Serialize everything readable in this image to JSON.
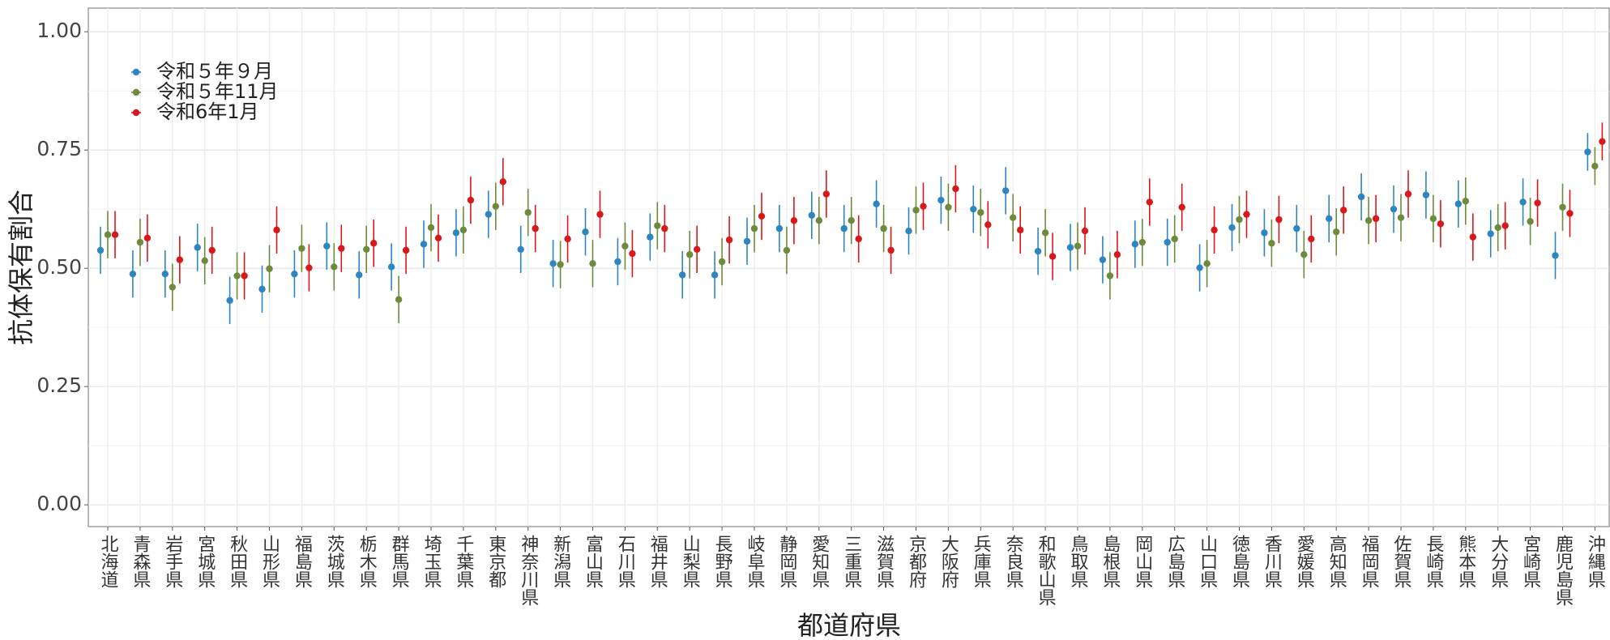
{
  "chart_data": {
    "type": "errorbar",
    "xlabel": "都道府県",
    "ylabel": "抗体保有割合",
    "categories": [
      "北海道",
      "青森県",
      "岩手県",
      "宮城県",
      "秋田県",
      "山形県",
      "福島県",
      "茨城県",
      "栃木県",
      "群馬県",
      "埼玉県",
      "千葉県",
      "東京都",
      "神奈川県",
      "新潟県",
      "富山県",
      "石川県",
      "福井県",
      "山梨県",
      "長野県",
      "岐阜県",
      "静岡県",
      "愛知県",
      "三重県",
      "滋賀県",
      "京都府",
      "大阪府",
      "兵庫県",
      "奈良県",
      "和歌山県",
      "鳥取県",
      "島根県",
      "岡山県",
      "広島県",
      "山口県",
      "徳島県",
      "香川県",
      "愛媛県",
      "高知県",
      "福岡県",
      "佐賀県",
      "長崎県",
      "熊本県",
      "大分県",
      "宮崎県",
      "鹿児島県",
      "沖縄県"
    ],
    "series": [
      {
        "name": "令和５年９月",
        "color": "#2e86c1",
        "values": [
          0.538,
          0.488,
          0.488,
          0.544,
          0.432,
          0.456,
          0.488,
          0.547,
          0.486,
          0.503,
          0.551,
          0.575,
          0.614,
          0.54,
          0.51,
          0.577,
          0.514,
          0.566,
          0.486,
          0.486,
          0.557,
          0.584,
          0.612,
          0.584,
          0.636,
          0.579,
          0.644,
          0.625,
          0.664,
          0.536,
          0.544,
          0.518,
          0.551,
          0.555,
          0.501,
          0.586,
          0.575,
          0.584,
          0.605,
          0.651,
          0.625,
          0.655,
          0.636,
          0.573,
          0.64,
          0.527,
          0.746
        ],
        "errors": [
          0.05,
          0.05,
          0.05,
          0.05,
          0.05,
          0.05,
          0.05,
          0.05,
          0.05,
          0.05,
          0.05,
          0.05,
          0.05,
          0.05,
          0.05,
          0.05,
          0.05,
          0.05,
          0.05,
          0.05,
          0.05,
          0.05,
          0.05,
          0.05,
          0.05,
          0.05,
          0.05,
          0.05,
          0.05,
          0.05,
          0.05,
          0.05,
          0.05,
          0.05,
          0.05,
          0.05,
          0.05,
          0.05,
          0.05,
          0.05,
          0.05,
          0.05,
          0.05,
          0.05,
          0.05,
          0.05,
          0.04
        ]
      },
      {
        "name": "令和５年11月",
        "color": "#6e8b3d",
        "values": [
          0.571,
          0.555,
          0.46,
          0.516,
          0.484,
          0.499,
          0.542,
          0.503,
          0.54,
          0.434,
          0.586,
          0.581,
          0.631,
          0.618,
          0.508,
          0.51,
          0.547,
          0.59,
          0.529,
          0.514,
          0.584,
          0.538,
          0.601,
          0.601,
          0.584,
          0.623,
          0.629,
          0.618,
          0.607,
          0.575,
          0.547,
          0.484,
          0.555,
          0.562,
          0.51,
          0.603,
          0.553,
          0.529,
          0.577,
          0.601,
          0.607,
          0.605,
          0.642,
          0.586,
          0.599,
          0.629,
          0.716
        ],
        "errors": [
          0.05,
          0.05,
          0.05,
          0.05,
          0.05,
          0.05,
          0.05,
          0.05,
          0.05,
          0.05,
          0.05,
          0.05,
          0.05,
          0.05,
          0.05,
          0.05,
          0.05,
          0.05,
          0.05,
          0.05,
          0.05,
          0.05,
          0.05,
          0.05,
          0.05,
          0.05,
          0.05,
          0.05,
          0.05,
          0.05,
          0.05,
          0.05,
          0.05,
          0.05,
          0.05,
          0.05,
          0.05,
          0.05,
          0.05,
          0.05,
          0.05,
          0.05,
          0.05,
          0.05,
          0.05,
          0.05,
          0.04
        ]
      },
      {
        "name": "令和6年1月",
        "color": "#d7191c",
        "values": [
          0.571,
          0.564,
          0.518,
          0.538,
          0.484,
          0.581,
          0.501,
          0.542,
          0.553,
          0.538,
          0.564,
          0.644,
          0.683,
          0.584,
          0.562,
          0.614,
          0.531,
          0.584,
          0.54,
          0.56,
          0.61,
          0.601,
          0.657,
          0.562,
          0.538,
          0.631,
          0.668,
          0.592,
          0.581,
          0.525,
          0.579,
          0.529,
          0.64,
          0.629,
          0.581,
          0.614,
          0.603,
          0.562,
          0.623,
          0.605,
          0.657,
          0.594,
          0.566,
          0.59,
          0.638,
          0.616,
          0.768
        ],
        "errors": [
          0.05,
          0.05,
          0.05,
          0.05,
          0.05,
          0.05,
          0.05,
          0.05,
          0.05,
          0.05,
          0.05,
          0.05,
          0.05,
          0.05,
          0.05,
          0.05,
          0.05,
          0.05,
          0.05,
          0.05,
          0.05,
          0.05,
          0.05,
          0.05,
          0.05,
          0.05,
          0.05,
          0.05,
          0.05,
          0.05,
          0.05,
          0.05,
          0.05,
          0.05,
          0.05,
          0.05,
          0.05,
          0.05,
          0.05,
          0.05,
          0.05,
          0.05,
          0.05,
          0.05,
          0.05,
          0.05,
          0.04
        ]
      }
    ],
    "ylim": [
      -0.046,
      1.05
    ],
    "yticks": [
      {
        "value": 0,
        "label": "0.00"
      },
      {
        "value": 0.25,
        "label": "0.25"
      },
      {
        "value": 0.5,
        "label": "0.50"
      },
      {
        "value": 0.75,
        "label": "0.75"
      },
      {
        "value": 1,
        "label": "1.00"
      }
    ],
    "grid": true,
    "legend": "top-left"
  }
}
